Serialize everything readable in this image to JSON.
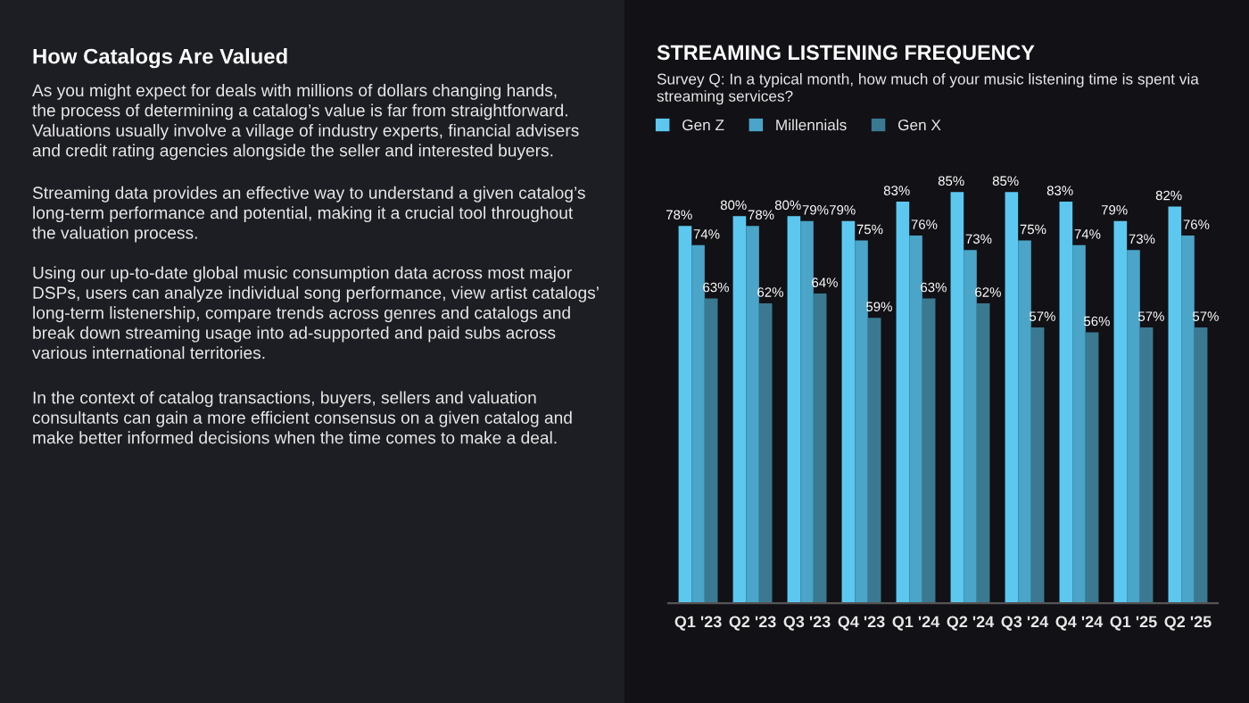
{
  "chart_data": [
    {
      "type": "other",
      "title": "How Catalogs Are Valued",
      "annotations": [
        "As you might expect for deals with millions of dollars changing hands,\nthe process of determining a catalog’s value is far from straightforward.\nValuations usually involve a village of industry experts, financial advisers\nand credit rating agencies alongside the seller and interested buyers.",
        "Streaming data provides an effective way to understand a given catalog’s\nlong-term performance and potential, making it a crucial tool throughout\nthe valuation process.",
        "Using our up-to-date global music consumption data across most major\nDSPs, users can analyze individual song performance, view artist catalogs’\nlong-term listenership, compare trends across genres and catalogs and\nbreak down streaming usage into ad-supported and paid subs across\nvarious international territories.",
        "In the context of catalog transactions, buyers, sellers and valuation\nconsultants can gain a more efficient consensus on a given catalog and\nmake better informed decisions when the time comes to make a deal."
      ]
    },
    {
      "type": "bar",
      "title": "STREAMING LISTENING FREQUENCY",
      "subtitle": "Survey Q: In a typical month, how much of your music listening time is spent via\nstreaming services?",
      "legend": "top left",
      "categories": [
        "Q1 '23",
        "Q2 '23",
        "Q3 '23",
        "Q4 '23",
        "Q1 '24",
        "Q2 '24",
        "Q3 '24",
        "Q4 '24",
        "Q1 '25",
        "Q2 '25"
      ],
      "series": [
        {
          "name": "Gen Z",
          "color": "#5cc8f0",
          "values": [
            78,
            80,
            80,
            79,
            83,
            85,
            85,
            83,
            79,
            82
          ],
          "value_labels": [
            "78%",
            "80%",
            "80%",
            "79%",
            "83%",
            "85%",
            "85%",
            "83%",
            "79%",
            "82%"
          ]
        },
        {
          "name": "Millennials",
          "color": "#4aa5c8",
          "values": [
            74,
            78,
            79,
            75,
            76,
            73,
            75,
            74,
            73,
            76
          ],
          "value_labels": [
            "74%",
            "78%",
            "79%",
            "75%",
            "76%",
            "73%",
            "75%",
            "74%",
            "73%",
            "76%"
          ]
        },
        {
          "name": "Gen X",
          "color": "#3a7990",
          "values": [
            63,
            62,
            64,
            59,
            63,
            62,
            57,
            56,
            57,
            57
          ],
          "value_labels": [
            "63%",
            "62%",
            "64%",
            "59%",
            "63%",
            "62%",
            "57%",
            "56%",
            "57%",
            "57%"
          ]
        }
      ]
    }
  ]
}
